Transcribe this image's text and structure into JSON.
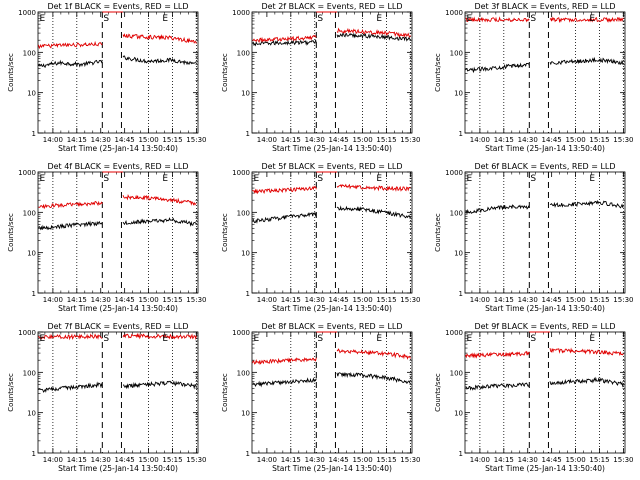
{
  "colors": {
    "events": "#000000",
    "lld": "#e00000",
    "axis": "#000000"
  },
  "chart_data": [
    {
      "type": "line",
      "title": "Det 1f BLACK = Events, RED = LLD",
      "xlabel": "Start Time (25-Jan-14 13:50:40)",
      "ylabel": "Counts/sec",
      "yscale": "log",
      "ylim": [
        1,
        1000
      ],
      "xlim": [
        "13:50:40",
        "15:31:00"
      ],
      "xticks": [
        "14:00",
        "14:15",
        "14:30",
        "14:45",
        "15:00",
        "15:15",
        "15:30"
      ],
      "dotted_lines": [
        "14:00",
        "14:15",
        "15:00",
        "15:15",
        "15:30"
      ],
      "dashed_lines": [
        "14:31",
        "14:43"
      ],
      "markers": [
        {
          "label": "E",
          "time": "13:51"
        },
        {
          "label": "S",
          "time": "14:31"
        },
        {
          "label": "E",
          "time": "15:08"
        }
      ],
      "series": [
        {
          "name": "Events",
          "segments": [
            {
              "t": [
                "13:51",
                "14:31"
              ],
              "y": [
                45,
                55,
                50,
                60
              ]
            },
            {
              "t": [
                "14:44",
                "15:30"
              ],
              "y": [
                75,
                60,
                65,
                50
              ]
            }
          ]
        },
        {
          "name": "LLD",
          "segments": [
            {
              "t": [
                "13:51",
                "14:31"
              ],
              "y": [
                140,
                150,
                155,
                160
              ]
            },
            {
              "t": [
                "14:31",
                "14:44"
              ],
              "y": [
                1000,
                1000
              ]
            },
            {
              "t": [
                "14:44",
                "15:30"
              ],
              "y": [
                260,
                240,
                230,
                180
              ]
            }
          ]
        }
      ]
    },
    {
      "type": "line",
      "title": "Det 2f BLACK = Events, RED = LLD",
      "xlabel": "Start Time (25-Jan-14 13:50:40)",
      "ylabel": "Counts/sec",
      "yscale": "log",
      "ylim": [
        1,
        1000
      ],
      "xlim": [
        "13:50:40",
        "15:31:00"
      ],
      "xticks": [
        "14:00",
        "14:15",
        "14:30",
        "14:45",
        "15:00",
        "15:15",
        "15:30"
      ],
      "dotted_lines": [
        "14:15",
        "14:30",
        "15:00",
        "15:15",
        "15:30"
      ],
      "dashed_lines": [
        "14:31",
        "14:43"
      ],
      "markers": [
        {
          "label": "S",
          "time": "14:31"
        },
        {
          "label": "E",
          "time": "15:08"
        }
      ],
      "series": [
        {
          "name": "Events",
          "segments": [
            {
              "t": [
                "13:51",
                "14:31"
              ],
              "y": [
                160,
                170,
                175,
                180
              ]
            },
            {
              "t": [
                "14:44",
                "15:30"
              ],
              "y": [
                270,
                260,
                240,
                210
              ]
            }
          ]
        },
        {
          "name": "LLD",
          "segments": [
            {
              "t": [
                "13:51",
                "14:31"
              ],
              "y": [
                200,
                210,
                220,
                240
              ]
            },
            {
              "t": [
                "14:31",
                "14:44"
              ],
              "y": [
                1000,
                1000
              ]
            },
            {
              "t": [
                "14:44",
                "15:30"
              ],
              "y": [
                350,
                330,
                300,
                260
              ]
            }
          ]
        }
      ]
    },
    {
      "type": "line",
      "title": "Det 3f BLACK = Events, RED = LLD",
      "xlabel": "Start Time (25-Jan-14 13:50:40)",
      "ylabel": "Counts/sec",
      "yscale": "log",
      "ylim": [
        1,
        1000
      ],
      "xlim": [
        "13:50:40",
        "15:31:00"
      ],
      "xticks": [
        "14:00",
        "14:15",
        "14:30",
        "14:45",
        "15:00",
        "15:15",
        "15:30"
      ],
      "dotted_lines": [
        "14:00",
        "14:15",
        "15:00",
        "15:15",
        "15:30"
      ],
      "dashed_lines": [
        "14:31",
        "14:43"
      ],
      "markers": [
        {
          "label": "E",
          "time": "13:51"
        },
        {
          "label": "S",
          "time": "14:31"
        },
        {
          "label": "E",
          "time": "15:08"
        }
      ],
      "series": [
        {
          "name": "Events",
          "segments": [
            {
              "t": [
                "13:51",
                "14:31"
              ],
              "y": [
                35,
                40,
                45,
                50
              ]
            },
            {
              "t": [
                "14:44",
                "15:30"
              ],
              "y": [
                55,
                60,
                65,
                55
              ]
            }
          ]
        },
        {
          "name": "LLD",
          "segments": [
            {
              "t": [
                "13:51",
                "14:31"
              ],
              "y": [
                650,
                650,
                650,
                650
              ]
            },
            {
              "t": [
                "14:44",
                "15:30"
              ],
              "y": [
                650,
                650,
                650,
                650
              ]
            }
          ]
        }
      ]
    },
    {
      "type": "line",
      "title": "Det 4f BLACK = Events, RED = LLD",
      "xlabel": "Start Time (25-Jan-14 13:50:40)",
      "ylabel": "Counts/sec",
      "yscale": "log",
      "ylim": [
        1,
        1000
      ],
      "xlim": [
        "13:50:40",
        "15:31:00"
      ],
      "xticks": [
        "14:00",
        "14:15",
        "14:30",
        "14:45",
        "15:00",
        "15:15",
        "15:30"
      ],
      "dotted_lines": [
        "14:00",
        "14:15",
        "15:00",
        "15:15",
        "15:30"
      ],
      "dashed_lines": [
        "14:31",
        "14:43"
      ],
      "markers": [
        {
          "label": "E",
          "time": "13:51"
        },
        {
          "label": "S",
          "time": "14:31"
        },
        {
          "label": "E",
          "time": "15:08"
        }
      ],
      "series": [
        {
          "name": "Events",
          "segments": [
            {
              "t": [
                "13:51",
                "14:31"
              ],
              "y": [
                40,
                45,
                50,
                55
              ]
            },
            {
              "t": [
                "14:44",
                "15:30"
              ],
              "y": [
                55,
                60,
                65,
                50
              ]
            }
          ]
        },
        {
          "name": "LLD",
          "segments": [
            {
              "t": [
                "13:51",
                "14:31"
              ],
              "y": [
                140,
                150,
                160,
                170
              ]
            },
            {
              "t": [
                "14:31",
                "14:44"
              ],
              "y": [
                1000,
                1000
              ]
            },
            {
              "t": [
                "14:44",
                "15:30"
              ],
              "y": [
                240,
                230,
                200,
                170
              ]
            }
          ]
        }
      ]
    },
    {
      "type": "line",
      "title": "Det 5f BLACK = Events, RED = LLD",
      "xlabel": "Start Time (25-Jan-14 13:50:40)",
      "ylabel": "Counts/sec",
      "yscale": "log",
      "ylim": [
        1,
        1000
      ],
      "xlim": [
        "13:50:40",
        "15:31:00"
      ],
      "xticks": [
        "14:00",
        "14:15",
        "14:30",
        "14:45",
        "15:00",
        "15:15",
        "15:30"
      ],
      "dotted_lines": [
        "14:15",
        "14:30",
        "15:00",
        "15:15",
        "15:30"
      ],
      "dashed_lines": [
        "14:31",
        "14:43"
      ],
      "markers": [
        {
          "label": "E",
          "time": "13:51"
        },
        {
          "label": "S",
          "time": "14:31"
        },
        {
          "label": "E",
          "time": "15:08"
        }
      ],
      "series": [
        {
          "name": "Events",
          "segments": [
            {
              "t": [
                "13:51",
                "14:31"
              ],
              "y": [
                60,
                70,
                80,
                90
              ]
            },
            {
              "t": [
                "14:44",
                "15:30"
              ],
              "y": [
                130,
                120,
                100,
                75
              ]
            }
          ]
        },
        {
          "name": "LLD",
          "segments": [
            {
              "t": [
                "13:51",
                "14:31"
              ],
              "y": [
                330,
                350,
                370,
                400
              ]
            },
            {
              "t": [
                "14:31",
                "14:44"
              ],
              "y": [
                1000,
                1000
              ]
            },
            {
              "t": [
                "14:44",
                "15:30"
              ],
              "y": [
                450,
                420,
                400,
                380
              ]
            }
          ]
        }
      ]
    },
    {
      "type": "line",
      "title": "Det 6f BLACK = Events, RED = LLD",
      "xlabel": "Start Time (25-Jan-14 13:50:40)",
      "ylabel": "Counts/sec",
      "yscale": "log",
      "ylim": [
        1,
        1000
      ],
      "xlim": [
        "13:50:40",
        "15:31:00"
      ],
      "xticks": [
        "14:00",
        "14:15",
        "14:30",
        "14:45",
        "15:00",
        "15:15",
        "15:30"
      ],
      "dotted_lines": [
        "14:00",
        "14:15",
        "15:00",
        "15:15",
        "15:30"
      ],
      "dashed_lines": [
        "14:31",
        "14:43"
      ],
      "markers": [
        {
          "label": "E",
          "time": "13:51"
        },
        {
          "label": "S",
          "time": "14:31"
        },
        {
          "label": "E",
          "time": "15:08"
        }
      ],
      "series": [
        {
          "name": "Events",
          "segments": [
            {
              "t": [
                "13:51",
                "14:31"
              ],
              "y": [
                100,
                120,
                140,
                130
              ]
            },
            {
              "t": [
                "14:44",
                "15:30"
              ],
              "y": [
                150,
                160,
                180,
                140
              ]
            }
          ]
        }
      ]
    },
    {
      "type": "line",
      "title": "Det 7f BLACK = Events, RED = LLD",
      "xlabel": "Start Time (25-Jan-14 13:50:40)",
      "ylabel": "Counts/sec",
      "yscale": "log",
      "ylim": [
        1,
        1000
      ],
      "xlim": [
        "13:50:40",
        "15:31:00"
      ],
      "xticks": [
        "14:00",
        "14:15",
        "14:30",
        "14:45",
        "15:00",
        "15:15",
        "15:30"
      ],
      "dotted_lines": [
        "14:00",
        "14:15",
        "15:00",
        "15:15",
        "15:30"
      ],
      "dashed_lines": [
        "14:31",
        "14:43"
      ],
      "markers": [
        {
          "label": "E",
          "time": "13:51"
        },
        {
          "label": "S",
          "time": "14:31"
        },
        {
          "label": "E",
          "time": "15:08"
        }
      ],
      "series": [
        {
          "name": "Events",
          "segments": [
            {
              "t": [
                "13:51",
                "14:31"
              ],
              "y": [
                35,
                40,
                45,
                50
              ]
            },
            {
              "t": [
                "14:44",
                "15:30"
              ],
              "y": [
                45,
                50,
                55,
                45
              ]
            }
          ]
        },
        {
          "name": "LLD",
          "segments": [
            {
              "t": [
                "13:51",
                "14:31"
              ],
              "y": [
                750,
                760,
                770,
                780
              ]
            },
            {
              "t": [
                "14:44",
                "15:30"
              ],
              "y": [
                800,
                790,
                780,
                770
              ]
            }
          ]
        }
      ]
    },
    {
      "type": "line",
      "title": "Det 8f BLACK = Events, RED = LLD",
      "xlabel": "Start Time (25-Jan-14 13:50:40)",
      "ylabel": "Counts/sec",
      "yscale": "log",
      "ylim": [
        1,
        1000
      ],
      "xlim": [
        "13:50:40",
        "15:31:00"
      ],
      "xticks": [
        "14:00",
        "14:15",
        "14:30",
        "14:45",
        "15:00",
        "15:15",
        "15:30"
      ],
      "dotted_lines": [
        "14:15",
        "14:30",
        "15:00",
        "15:15",
        "15:30"
      ],
      "dashed_lines": [
        "14:31",
        "14:43"
      ],
      "markers": [
        {
          "label": "E",
          "time": "13:51"
        },
        {
          "label": "S",
          "time": "14:31"
        },
        {
          "label": "E",
          "time": "15:08"
        }
      ],
      "series": [
        {
          "name": "Events",
          "segments": [
            {
              "t": [
                "13:51",
                "14:31"
              ],
              "y": [
                50,
                55,
                60,
                65
              ]
            },
            {
              "t": [
                "14:44",
                "15:30"
              ],
              "y": [
                90,
                85,
                75,
                55
              ]
            }
          ]
        },
        {
          "name": "LLD",
          "segments": [
            {
              "t": [
                "13:51",
                "14:31"
              ],
              "y": [
                180,
                190,
                200,
                210
              ]
            },
            {
              "t": [
                "14:31",
                "14:44"
              ],
              "y": [
                1000,
                1000
              ]
            },
            {
              "t": [
                "14:44",
                "15:30"
              ],
              "y": [
                350,
                320,
                290,
                240
              ]
            }
          ]
        }
      ]
    },
    {
      "type": "line",
      "title": "Det 9f BLACK = Events, RED = LLD",
      "xlabel": "Start Time (25-Jan-14 13:50:40)",
      "ylabel": "Counts/sec",
      "yscale": "log",
      "ylim": [
        1,
        1000
      ],
      "xlim": [
        "13:50:40",
        "15:31:00"
      ],
      "xticks": [
        "14:00",
        "14:15",
        "14:30",
        "14:45",
        "15:00",
        "15:15",
        "15:30"
      ],
      "dotted_lines": [
        "14:00",
        "14:15",
        "15:00",
        "15:15",
        "15:30"
      ],
      "dashed_lines": [
        "14:31",
        "14:43"
      ],
      "markers": [
        {
          "label": "E",
          "time": "13:51"
        },
        {
          "label": "S",
          "time": "14:31"
        },
        {
          "label": "E",
          "time": "15:08"
        }
      ],
      "series": [
        {
          "name": "Events",
          "segments": [
            {
              "t": [
                "13:51",
                "14:31"
              ],
              "y": [
                40,
                45,
                48,
                50
              ]
            },
            {
              "t": [
                "14:44",
                "15:30"
              ],
              "y": [
                55,
                60,
                65,
                50
              ]
            }
          ]
        },
        {
          "name": "LLD",
          "segments": [
            {
              "t": [
                "13:51",
                "14:31"
              ],
              "y": [
                260,
                270,
                280,
                300
              ]
            },
            {
              "t": [
                "14:31",
                "14:44"
              ],
              "y": [
                1000,
                1000
              ]
            },
            {
              "t": [
                "14:44",
                "15:30"
              ],
              "y": [
                360,
                340,
                320,
                290
              ]
            }
          ]
        }
      ]
    }
  ]
}
